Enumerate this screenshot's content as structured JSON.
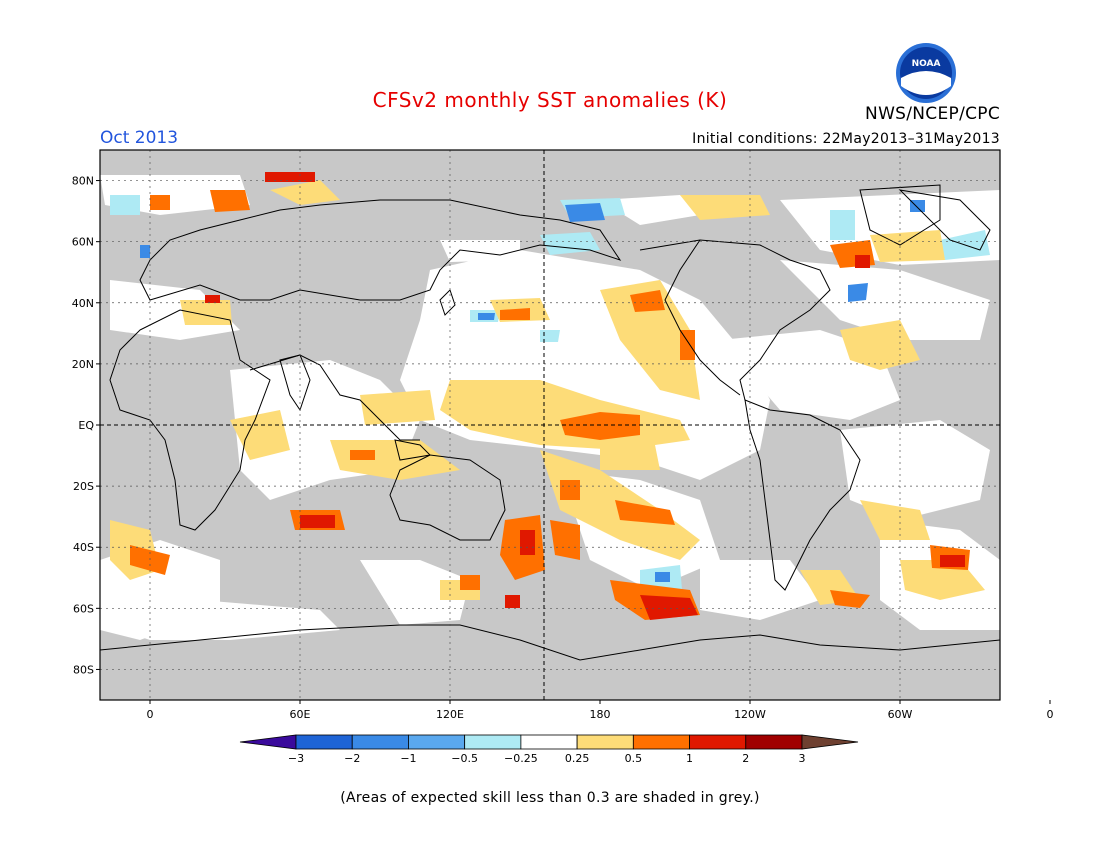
{
  "title": "CFSv2 monthly SST anomalies (K)",
  "period": "Oct 2013",
  "initial_conditions": "Initial conditions: 22May2013–31May2013",
  "agency": "NWS/NCEP/CPC",
  "logo_text": "NOAA",
  "footnote": "(Areas of expected skill less than 0.3 are shaded in grey.)",
  "colors": {
    "title": "#e60000",
    "period": "#2255dd",
    "grey_mask": "#c8c8c8",
    "ocean_neutral": "#ffffff",
    "coastline": "#000000"
  },
  "map": {
    "lat_labels": [
      "80N",
      "60N",
      "40N",
      "20N",
      "EQ",
      "20S",
      "40S",
      "60S",
      "80S"
    ],
    "lon_labels": [
      "0",
      "60E",
      "120E",
      "180",
      "120W",
      "60W",
      "0"
    ]
  },
  "legend": {
    "tick_labels": [
      "−3",
      "−2",
      "−1",
      "−0.5",
      "−0.25",
      "0.25",
      "0.5",
      "1",
      "2",
      "3"
    ],
    "colors": [
      "#3a0a9c",
      "#1e64d6",
      "#3a8ae6",
      "#5aa8ee",
      "#aeeaf4",
      "#ffffff",
      "#fddc78",
      "#ff7000",
      "#e01800",
      "#a00000",
      "#6e4030"
    ]
  }
}
